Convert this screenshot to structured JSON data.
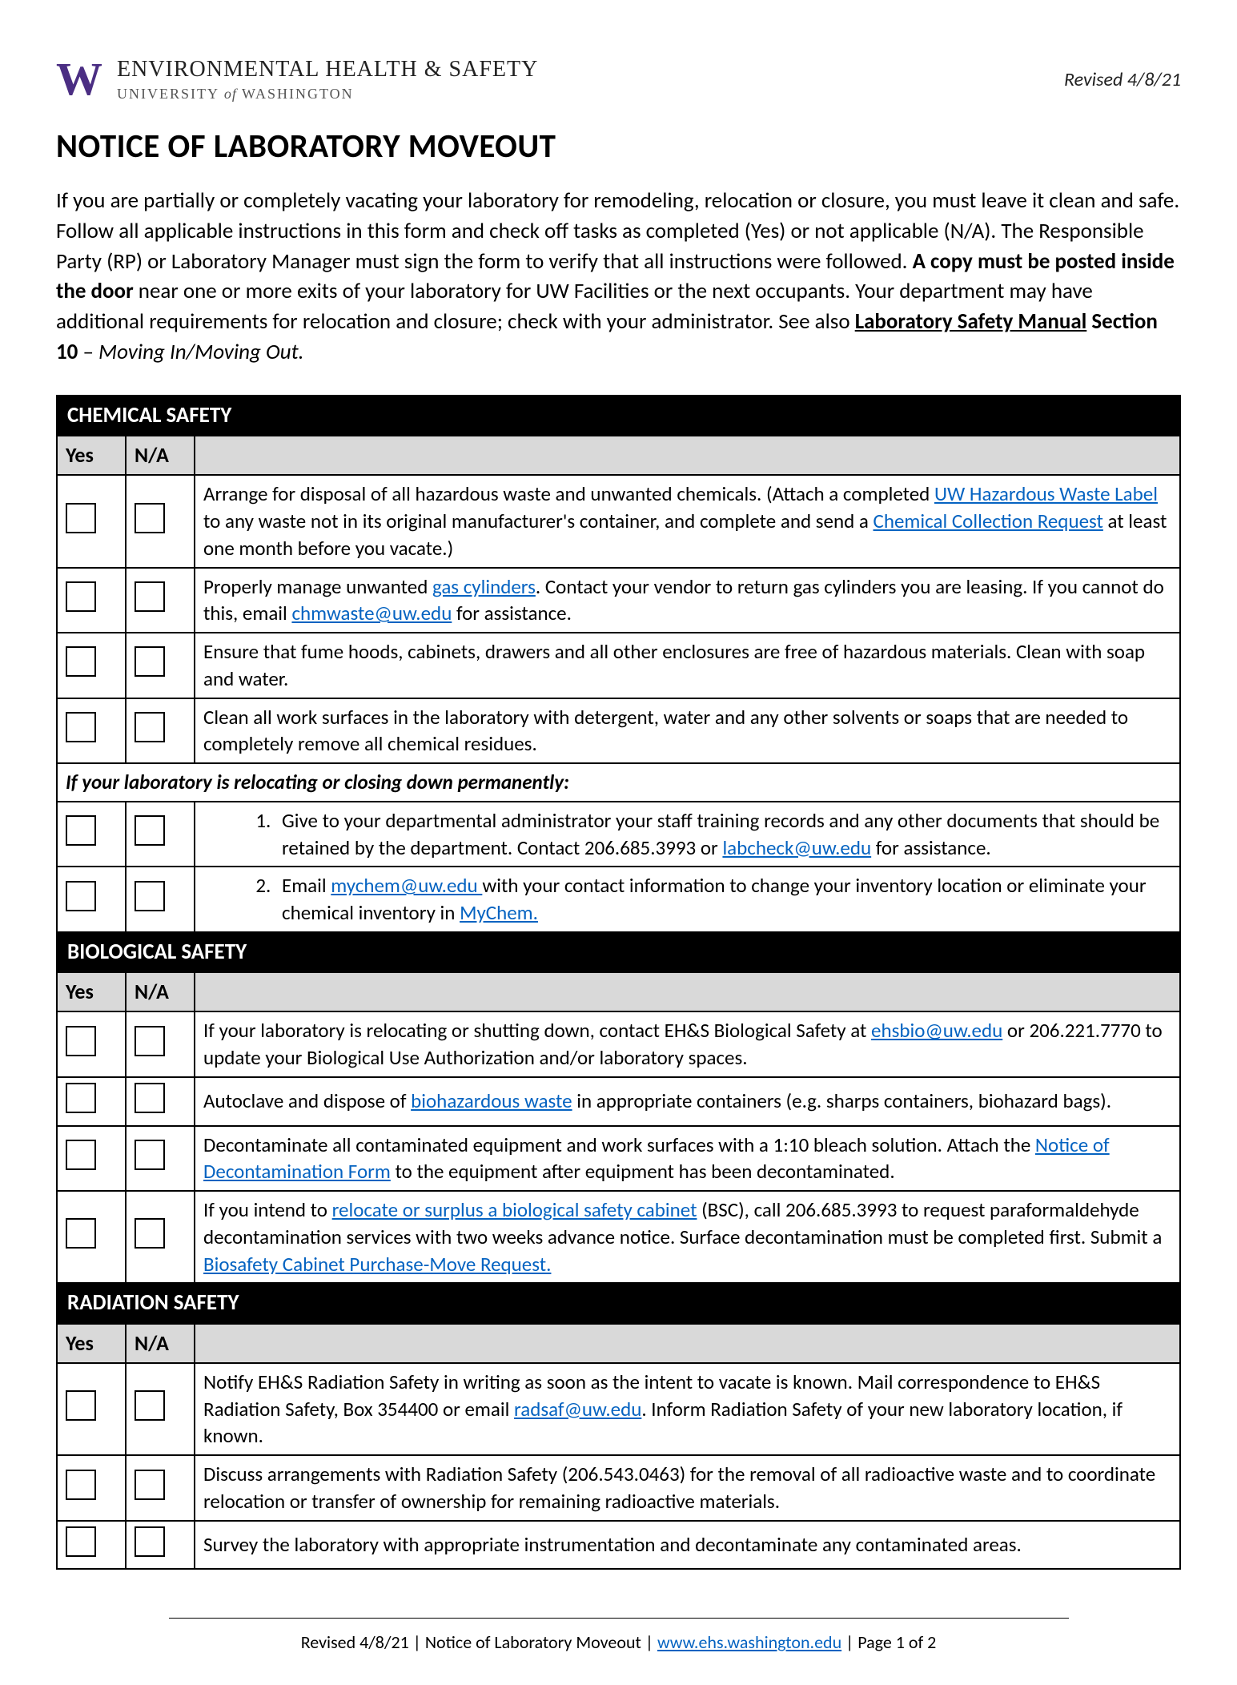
{
  "header": {
    "logo_letter": "W",
    "dept_main": "ENVIRONMENTAL HEALTH & SAFETY",
    "dept_sub_pre": "UNIVERSITY ",
    "dept_sub_of": "of",
    "dept_sub_post": " WASHINGTON",
    "revised": "Revised 4/8/21"
  },
  "title": "NOTICE OF LABORATORY MOVEOUT",
  "intro": {
    "part1": "If you are partially or completely vacating your laboratory for remodeling, relocation or closure, you must leave it clean and safe. Follow all applicable instructions in this form and check off tasks as completed (Yes) or not applicable (N/A). The Responsible Party (RP) or Laboratory Manager must sign the form to verify that all instructions were followed. ",
    "bold1": "A copy must be posted inside the door",
    "part2": " near one or more exits of your laboratory for UW Facilities or the next occupants. Your department may have additional requirements for relocation and closure; check with your administrator. See also ",
    "link_bold": "Laboratory Safety Manual",
    "bold_tail": " Section 10",
    "part3": " – ",
    "italic_tail": "Moving In/Moving Out."
  },
  "columns": {
    "yes": "Yes",
    "na": "N/A"
  },
  "chemical": {
    "header": "CHEMICAL SAFETY",
    "rows": [
      {
        "pre": "Arrange for disposal of all hazardous waste and unwanted chemicals. (Attach a completed ",
        "link1": "UW Hazardous Waste Label",
        "mid1": " to any waste not in its original manufacturer's container, and complete and send a ",
        "link2": "Chemical Collection Request",
        "post": " at least one month before you vacate.)"
      },
      {
        "pre": "Properly manage unwanted ",
        "link1": "gas cylinders",
        "mid1": ". Contact your vendor to return gas cylinders you are leasing. If you cannot do this, email ",
        "link2": "chmwaste@uw.edu",
        "post": " for assistance."
      },
      {
        "text": "Ensure that fume hoods, cabinets, drawers and all other enclosures are free of hazardous materials. Clean with soap and water."
      },
      {
        "text": "Clean all work surfaces in the laboratory with detergent, water and any other solvents or soaps that are needed to completely remove all chemical residues."
      }
    ],
    "subnote": "If your laboratory is relocating or closing down permanently:",
    "subrows": [
      {
        "num": "1.",
        "pre": "Give to your departmental administrator your staff training records and any other documents that should be retained by the department. Contact 206.685.3993 or ",
        "link1": "labcheck@uw.edu",
        "post": " for assistance."
      },
      {
        "num": "2.",
        "pre": "Email ",
        "link1": "mychem@uw.edu ",
        "mid1": "with your contact information to change your inventory location or eliminate your chemical inventory in ",
        "link2": "MyChem.",
        "post": ""
      }
    ]
  },
  "biological": {
    "header": "BIOLOGICAL SAFETY",
    "rows": [
      {
        "pre": "If your laboratory is relocating or shutting down, contact EH&S Biological Safety at ",
        "link1": "ehsbio@uw.edu",
        "post": " or 206.221.7770 to update your Biological Use Authorization and/or laboratory spaces."
      },
      {
        "pre": "Autoclave and dispose of ",
        "link1": "biohazardous waste",
        "post": " in appropriate containers (e.g. sharps containers, biohazard bags)."
      },
      {
        "pre": "Decontaminate all contaminated equipment and work surfaces with a 1:10 bleach solution. Attach the ",
        "link1": "Notice of Decontamination Form",
        "post": " to the equipment after equipment has been decontaminated."
      },
      {
        "pre": "If you intend to ",
        "link1": "relocate or surplus a biological safety cabinet",
        "mid1": " (BSC), call 206.685.3993 to request paraformaldehyde decontamination services with two weeks advance notice. Surface decontamination must be completed first. Submit a ",
        "link2": "Biosafety Cabinet Purchase-Move Request.",
        "post": ""
      }
    ]
  },
  "radiation": {
    "header": "RADIATION SAFETY",
    "rows": [
      {
        "pre": "Notify EH&S Radiation Safety in writing as soon as the intent to vacate is known. Mail correspondence to EH&S Radiation Safety, Box 354400 or email ",
        "link1": "radsaf@uw.edu",
        "post": ". Inform Radiation Safety of your new laboratory location, if known."
      },
      {
        "text": "Discuss arrangements with Radiation Safety (206.543.0463) for the removal of all radioactive waste and to coordinate relocation or transfer of ownership for remaining radioactive materials."
      },
      {
        "text": "Survey the laboratory with appropriate instrumentation and decontaminate any contaminated areas."
      }
    ]
  },
  "footer": {
    "pre": "Revised 4/8/21 | Notice of Laboratory Moveout | ",
    "link": "www.ehs.washington.edu",
    "post": " | Page 1 of 2"
  }
}
